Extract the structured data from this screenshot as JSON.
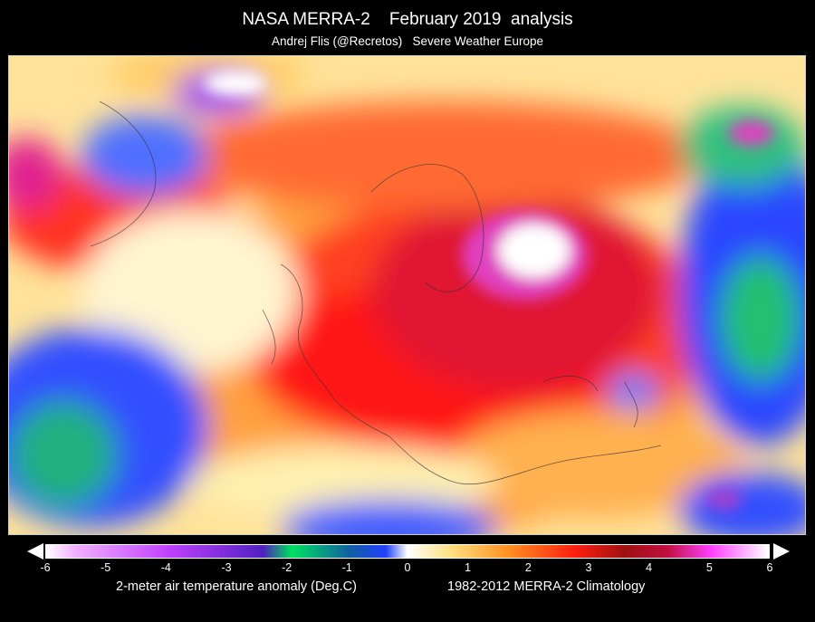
{
  "header": {
    "title": "NASA MERRA-2    February 2019  analysis",
    "subtitle": "Andrej Flis (@Recretos)   Severe Weather Europe"
  },
  "map": {
    "region": "Europe and North Atlantic",
    "anomaly_colors": {
      "strong_cold": "#00e060",
      "cold": "#2040ff",
      "neutral": "#ffffff",
      "mild_warm": "#ffe080",
      "warm": "#ff9020",
      "hot": "#ff2010",
      "very_hot": "#c01040",
      "extreme": "#ff40ff"
    }
  },
  "colorbar": {
    "ticks": [
      "-6",
      "-5",
      "-4",
      "-3",
      "-2",
      "-1",
      "0",
      "1",
      "2",
      "3",
      "4",
      "5",
      "6"
    ],
    "min": -6,
    "max": 6,
    "label": "2-meter air temperature anomaly (Deg.C)",
    "climatology": "1982-2012 MERRA-2 Climatology"
  }
}
